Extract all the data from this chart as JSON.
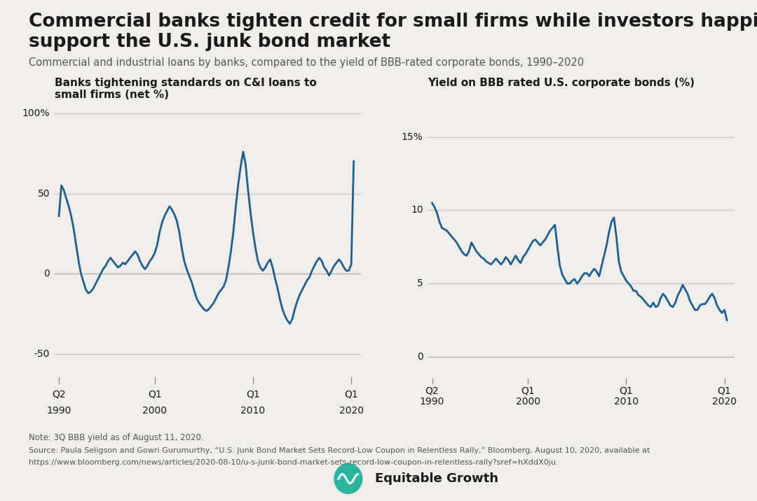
{
  "title_line1": "Commercial banks tighten credit for small firms while investors happily",
  "title_line2": "support the U.S. junk bond market",
  "subtitle": "Commercial and industrial loans by banks, compared to the yield of BBB-rated corporate bonds, 1990–2020",
  "left_chart_title": "Banks tightening standards on C&I loans to\nsmall firms (net %)",
  "right_chart_title": "Yield on BBB rated U.S. corporate bonds (%)",
  "note": "Note: 3Q BBB yield as of August 11, 2020.",
  "source_line1": "Source: Paula Seligson and Gowri Gurumurthy, “U.S. Junk Bond Market Sets Record-Low Coupon in Relentless Rally,” Bloomberg, August 10, 2020, available at",
  "source_line2": "https://www.bloomberg.com/news/articles/2020-08-10/u-s-junk-bond-market-sets-record-low-coupon-in-relentless-rally?sref=hXddX0ju.",
  "background_color": "#f0eeeb",
  "line_color": "#1c5f96",
  "zero_line_color": "#b8b4ae",
  "grid_color": "#c8c5c0",
  "text_color": "#1a1a1a",
  "subtitle_color": "#555555",
  "left_yticks": [
    -50,
    0,
    50,
    100
  ],
  "left_ytick_labels": [
    "-50",
    "0",
    "50",
    "100%"
  ],
  "right_yticks": [
    0,
    5,
    10,
    15
  ],
  "right_ytick_labels": [
    "0",
    "5",
    "10",
    "15%"
  ],
  "logo_color": "#2ab5a0",
  "logo_text": "Equitable Growth"
}
